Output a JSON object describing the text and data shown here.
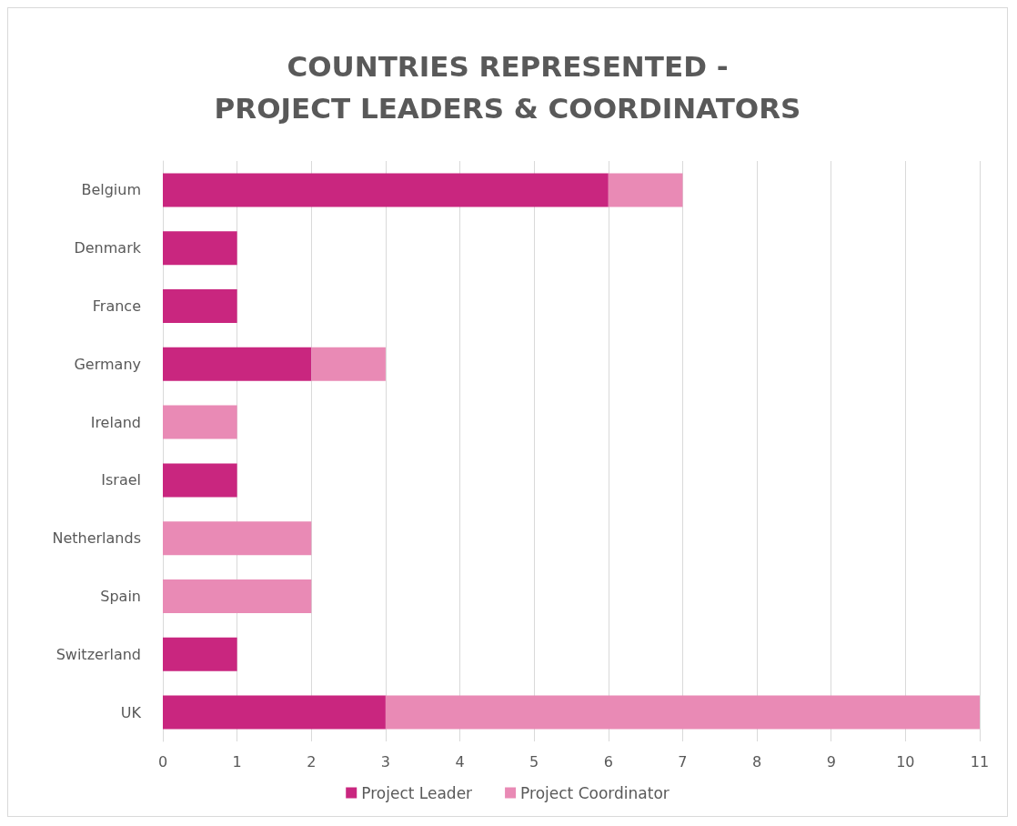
{
  "chart_data": {
    "type": "bar",
    "orientation": "horizontal",
    "stacked": true,
    "title": "COUNTRIES REPRESENTED -\nPROJECT LEADERS & COORDINATORS",
    "categories": [
      "Belgium",
      "Denmark",
      "France",
      "Germany",
      "Ireland",
      "Israel",
      "Netherlands",
      "Spain",
      "Switzerland",
      "UK"
    ],
    "series": [
      {
        "name": "Project Leader",
        "color": "#c9267f",
        "values": [
          6,
          1,
          1,
          2,
          0,
          1,
          0,
          0,
          1,
          3
        ]
      },
      {
        "name": "Project Coordinator",
        "color": "#e98ab5",
        "values": [
          1,
          0,
          0,
          1,
          1,
          0,
          2,
          2,
          0,
          8
        ]
      }
    ],
    "xlim": [
      0,
      11
    ],
    "xticks": [
      0,
      1,
      2,
      3,
      4,
      5,
      6,
      7,
      8,
      9,
      10,
      11
    ],
    "grid": "x",
    "legend": "bottom"
  }
}
